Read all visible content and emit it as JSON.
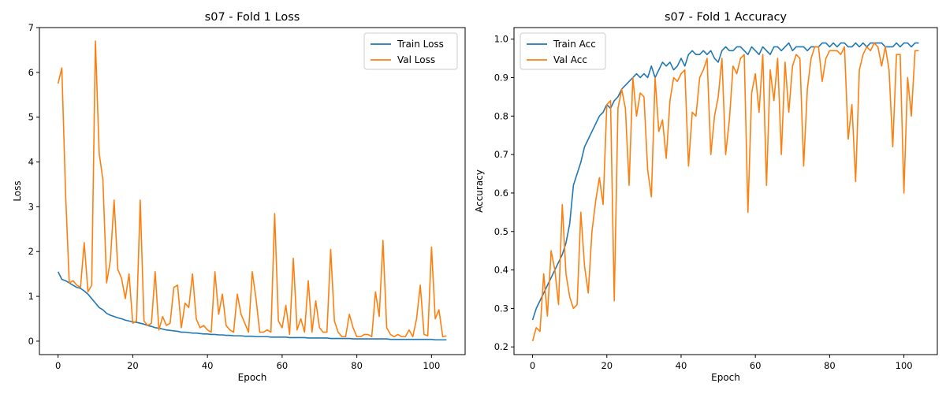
{
  "chart_data": [
    {
      "type": "line",
      "title": "s07 - Fold 1 Loss",
      "xlabel": "Epoch",
      "ylabel": "Loss",
      "xlim": [
        -5,
        109
      ],
      "ylim": [
        -0.3,
        7.0
      ],
      "xticks": [
        0,
        20,
        40,
        60,
        80,
        100
      ],
      "yticks": [
        0,
        1,
        2,
        3,
        4,
        5,
        6,
        7
      ],
      "grid": false,
      "legend_position": "upper-right",
      "series": [
        {
          "name": "Train Loss",
          "color": "#1f77b4",
          "values": [
            1.55,
            1.38,
            1.35,
            1.3,
            1.25,
            1.2,
            1.18,
            1.12,
            1.05,
            0.95,
            0.85,
            0.75,
            0.7,
            0.62,
            0.58,
            0.55,
            0.52,
            0.5,
            0.47,
            0.45,
            0.43,
            0.42,
            0.4,
            0.38,
            0.35,
            0.33,
            0.3,
            0.29,
            0.27,
            0.25,
            0.24,
            0.23,
            0.22,
            0.2,
            0.2,
            0.19,
            0.18,
            0.18,
            0.17,
            0.16,
            0.16,
            0.15,
            0.15,
            0.14,
            0.14,
            0.13,
            0.13,
            0.12,
            0.12,
            0.12,
            0.11,
            0.11,
            0.11,
            0.1,
            0.1,
            0.1,
            0.1,
            0.09,
            0.09,
            0.09,
            0.09,
            0.09,
            0.08,
            0.08,
            0.08,
            0.08,
            0.08,
            0.07,
            0.07,
            0.07,
            0.07,
            0.07,
            0.07,
            0.06,
            0.06,
            0.06,
            0.06,
            0.06,
            0.06,
            0.05,
            0.05,
            0.05,
            0.05,
            0.05,
            0.05,
            0.05,
            0.05,
            0.05,
            0.05,
            0.04,
            0.04,
            0.04,
            0.04,
            0.04,
            0.04,
            0.04,
            0.04,
            0.04,
            0.04,
            0.04,
            0.04,
            0.03,
            0.03,
            0.03,
            0.03
          ]
        },
        {
          "name": "Val Loss",
          "color": "#ff7f0e",
          "values": [
            5.75,
            6.1,
            3.3,
            1.3,
            1.35,
            1.25,
            1.2,
            2.2,
            1.1,
            1.25,
            6.7,
            4.2,
            3.6,
            1.3,
            1.8,
            3.15,
            1.6,
            1.4,
            0.95,
            1.5,
            0.4,
            0.45,
            3.15,
            0.45,
            0.35,
            0.4,
            1.55,
            0.25,
            0.55,
            0.35,
            0.4,
            1.2,
            1.25,
            0.3,
            0.85,
            0.75,
            1.5,
            0.5,
            0.3,
            0.35,
            0.25,
            0.2,
            1.55,
            0.6,
            1.05,
            0.35,
            0.25,
            0.2,
            1.05,
            0.6,
            0.4,
            0.2,
            1.55,
            0.95,
            0.2,
            0.2,
            0.25,
            0.2,
            2.85,
            0.45,
            0.3,
            0.8,
            0.15,
            1.85,
            0.25,
            0.5,
            0.2,
            1.35,
            0.2,
            0.9,
            0.3,
            0.2,
            0.2,
            2.05,
            0.45,
            0.2,
            0.1,
            0.1,
            0.6,
            0.3,
            0.1,
            0.1,
            0.15,
            0.15,
            0.1,
            1.1,
            0.55,
            2.25,
            0.3,
            0.15,
            0.1,
            0.15,
            0.1,
            0.1,
            0.25,
            0.1,
            0.5,
            1.25,
            0.15,
            0.12,
            2.1,
            0.5,
            0.7,
            0.1,
            0.12
          ]
        }
      ]
    },
    {
      "type": "line",
      "title": "s07 - Fold 1 Accuracy",
      "xlabel": "Epoch",
      "ylabel": "Accuracy",
      "xlim": [
        -5,
        109
      ],
      "ylim": [
        0.18,
        1.03
      ],
      "xticks": [
        0,
        20,
        40,
        60,
        80,
        100
      ],
      "yticks": [
        0.2,
        0.3,
        0.4,
        0.5,
        0.6,
        0.7,
        0.8,
        0.9,
        1.0
      ],
      "grid": false,
      "legend_position": "upper-left",
      "series": [
        {
          "name": "Train Acc",
          "color": "#1f77b4",
          "values": [
            0.27,
            0.3,
            0.32,
            0.34,
            0.36,
            0.38,
            0.4,
            0.42,
            0.44,
            0.47,
            0.52,
            0.62,
            0.65,
            0.68,
            0.72,
            0.74,
            0.76,
            0.78,
            0.8,
            0.81,
            0.83,
            0.82,
            0.84,
            0.85,
            0.87,
            0.88,
            0.89,
            0.9,
            0.91,
            0.9,
            0.91,
            0.9,
            0.93,
            0.9,
            0.92,
            0.94,
            0.93,
            0.94,
            0.92,
            0.93,
            0.95,
            0.93,
            0.96,
            0.97,
            0.96,
            0.96,
            0.97,
            0.96,
            0.97,
            0.95,
            0.94,
            0.97,
            0.98,
            0.97,
            0.97,
            0.98,
            0.98,
            0.97,
            0.96,
            0.98,
            0.97,
            0.96,
            0.98,
            0.97,
            0.96,
            0.98,
            0.98,
            0.97,
            0.98,
            0.99,
            0.97,
            0.98,
            0.98,
            0.98,
            0.97,
            0.98,
            0.98,
            0.98,
            0.99,
            0.99,
            0.98,
            0.99,
            0.98,
            0.99,
            0.99,
            0.98,
            0.98,
            0.99,
            0.98,
            0.99,
            0.98,
            0.99,
            0.99,
            0.99,
            0.99,
            0.98,
            0.98,
            0.98,
            0.99,
            0.98,
            0.99,
            0.99,
            0.98,
            0.99,
            0.99
          ]
        },
        {
          "name": "Val Acc",
          "color": "#ff7f0e",
          "values": [
            0.215,
            0.25,
            0.24,
            0.39,
            0.28,
            0.45,
            0.4,
            0.31,
            0.57,
            0.39,
            0.33,
            0.3,
            0.31,
            0.55,
            0.41,
            0.34,
            0.5,
            0.58,
            0.64,
            0.57,
            0.83,
            0.84,
            0.32,
            0.82,
            0.87,
            0.82,
            0.62,
            0.9,
            0.8,
            0.86,
            0.85,
            0.66,
            0.59,
            0.9,
            0.76,
            0.79,
            0.69,
            0.84,
            0.9,
            0.89,
            0.91,
            0.92,
            0.67,
            0.81,
            0.8,
            0.9,
            0.92,
            0.95,
            0.7,
            0.8,
            0.85,
            0.95,
            0.7,
            0.79,
            0.93,
            0.91,
            0.95,
            0.96,
            0.55,
            0.86,
            0.91,
            0.81,
            0.96,
            0.62,
            0.92,
            0.84,
            0.95,
            0.7,
            0.94,
            0.81,
            0.93,
            0.96,
            0.95,
            0.67,
            0.87,
            0.95,
            0.98,
            0.98,
            0.89,
            0.95,
            0.97,
            0.97,
            0.97,
            0.96,
            0.98,
            0.74,
            0.83,
            0.63,
            0.92,
            0.96,
            0.98,
            0.97,
            0.99,
            0.98,
            0.93,
            0.98,
            0.92,
            0.72,
            0.96,
            0.96,
            0.6,
            0.9,
            0.8,
            0.97,
            0.97
          ]
        }
      ]
    }
  ]
}
